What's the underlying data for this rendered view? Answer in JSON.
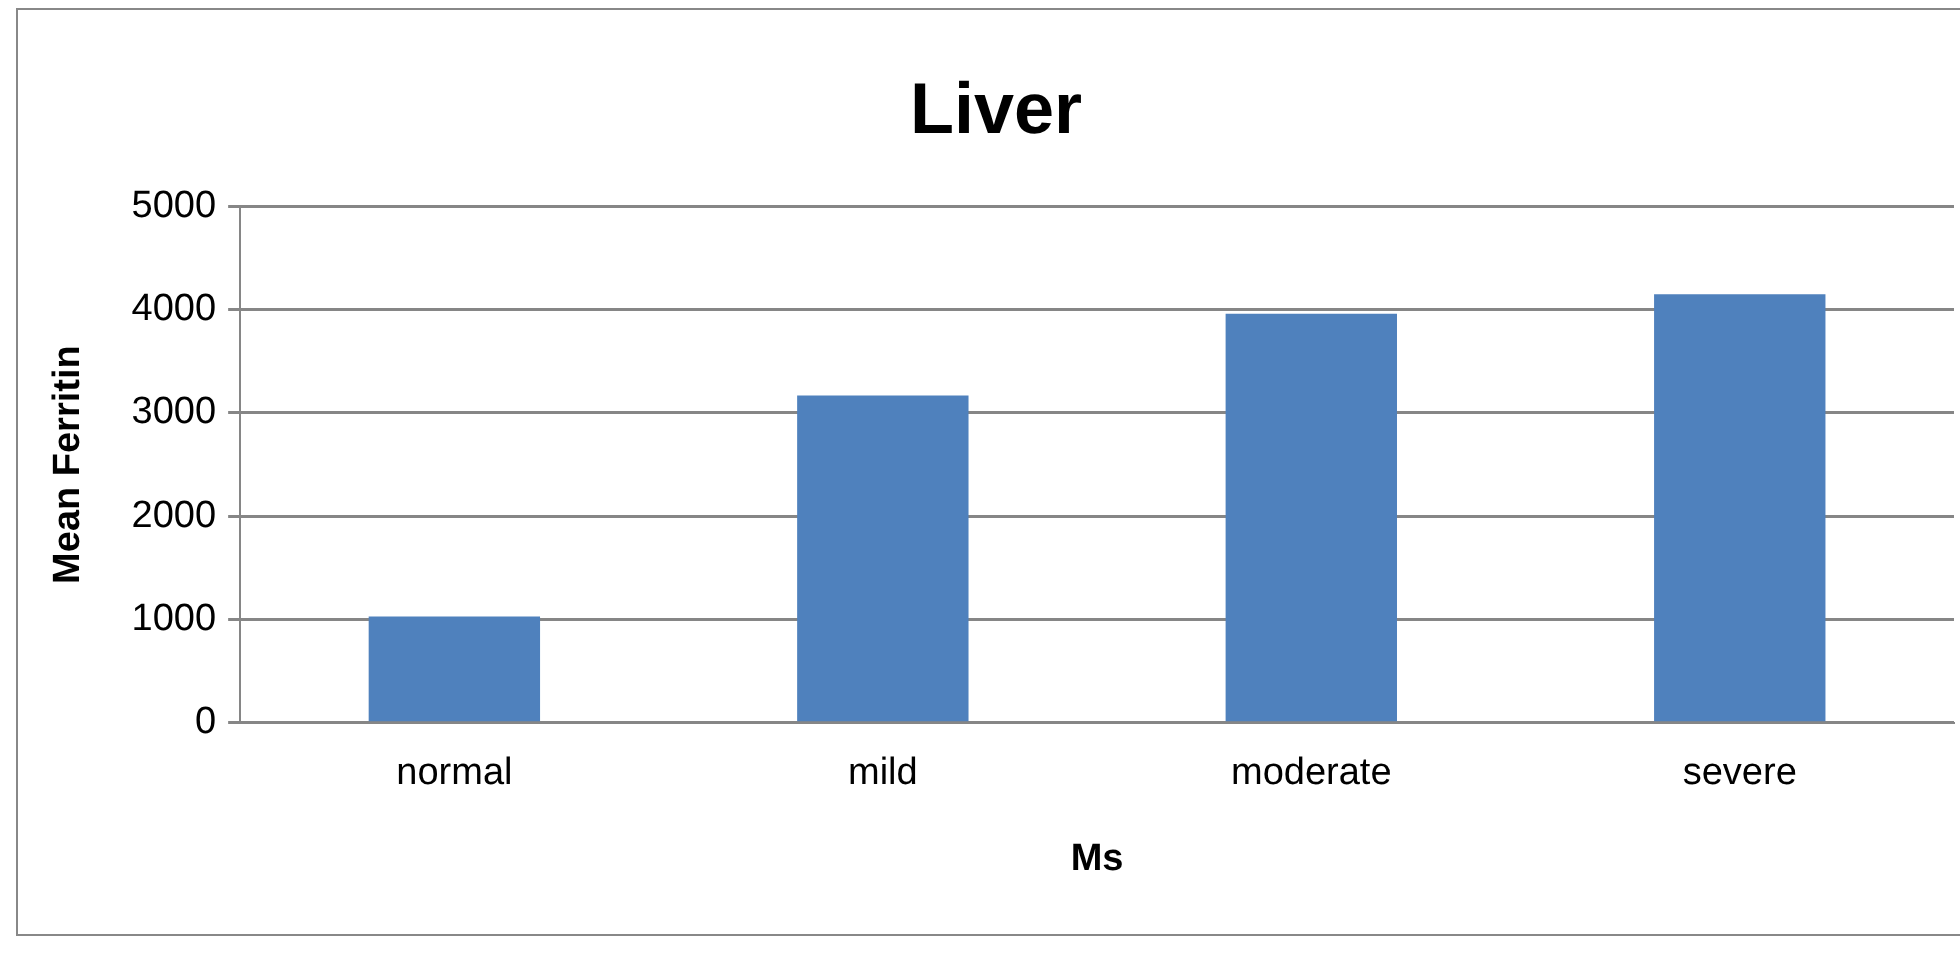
{
  "chart_data": {
    "type": "bar",
    "title": "Liver",
    "xlabel": "Ms",
    "ylabel": "Mean Ferritin",
    "categories": [
      "normal",
      "mild",
      "moderate",
      "severe"
    ],
    "values": [
      1030,
      3170,
      3960,
      4150
    ],
    "color": "#4f81bd",
    "ylim": [
      0,
      5000
    ],
    "yticks": [
      0,
      1000,
      2000,
      3000,
      4000,
      5000
    ],
    "grid": "y",
    "legend": false
  }
}
